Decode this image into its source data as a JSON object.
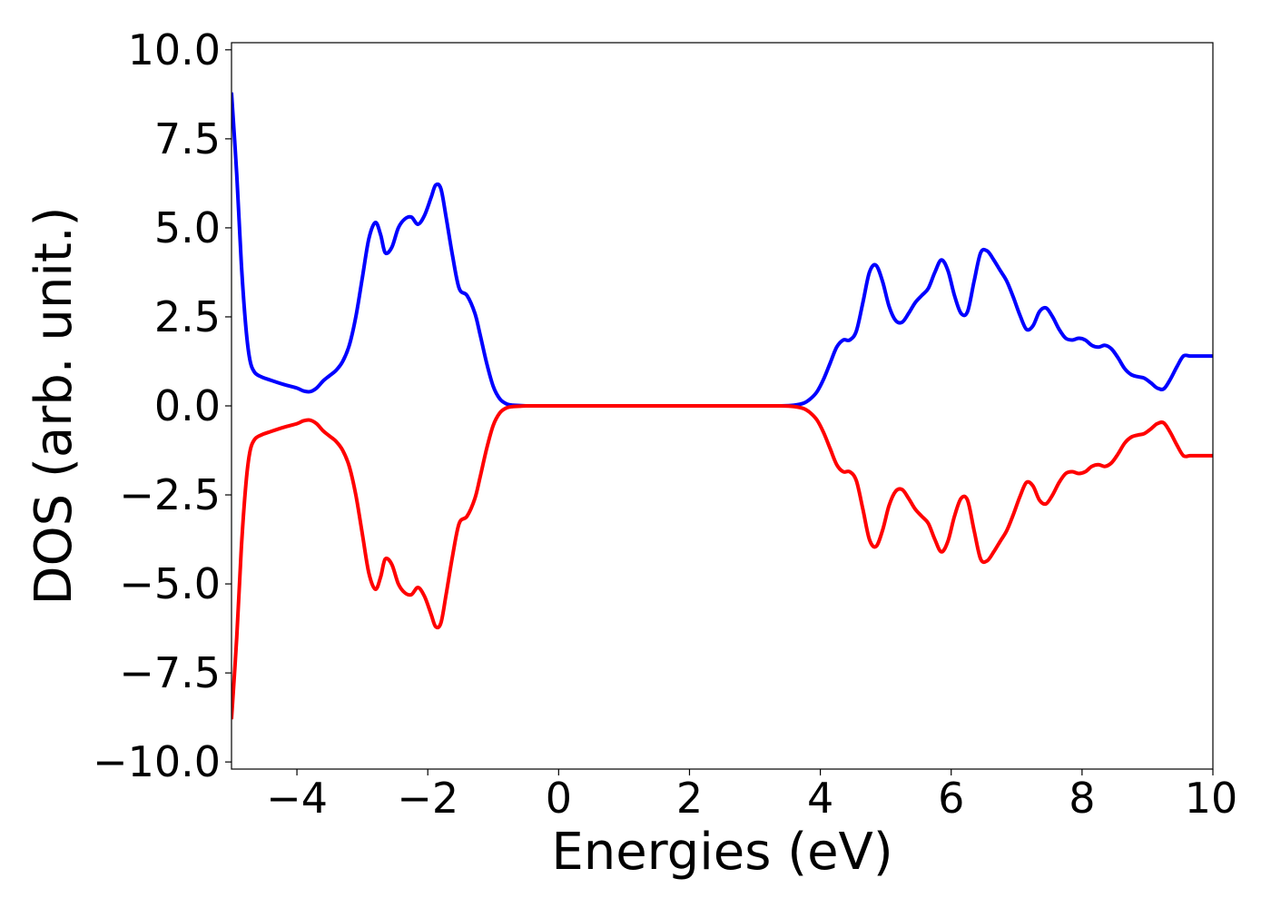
{
  "chart_data": {
    "type": "line",
    "title": "",
    "xlabel": "Energies (eV)",
    "ylabel": "DOS (arb. unit.)",
    "xlim": [
      -5,
      10
    ],
    "ylim": [
      -10.2,
      10.2
    ],
    "xticks": [
      -4,
      -2,
      0,
      2,
      4,
      6,
      8,
      10
    ],
    "xtick_labels": [
      "−4",
      "−2",
      "0",
      "2",
      "4",
      "6",
      "8",
      "10"
    ],
    "yticks": [
      10,
      7.5,
      5,
      2.5,
      0,
      -2.5,
      -5,
      -7.5,
      -10
    ],
    "ytick_labels": [
      "10.0",
      "7.5",
      "5.0",
      "2.5",
      "0.0",
      "−2.5",
      "−5.0",
      "−7.5",
      "−10.0"
    ],
    "grid": false,
    "legend": "none",
    "series": [
      {
        "color": "#0000ff",
        "x": [
          -5.0,
          -4.92,
          -4.85,
          -4.78,
          -4.72,
          -4.65,
          -4.55,
          -4.4,
          -4.2,
          -4.0,
          -3.9,
          -3.8,
          -3.7,
          -3.6,
          -3.5,
          -3.4,
          -3.3,
          -3.2,
          -3.1,
          -3.0,
          -2.9,
          -2.8,
          -2.72,
          -2.65,
          -2.55,
          -2.45,
          -2.35,
          -2.25,
          -2.15,
          -2.05,
          -1.95,
          -1.88,
          -1.8,
          -1.72,
          -1.62,
          -1.52,
          -1.4,
          -1.28,
          -1.2,
          -1.1,
          -1.0,
          -0.9,
          -0.8,
          -0.7,
          -0.6,
          -0.5,
          -0.3,
          0.0,
          0.5,
          1.0,
          1.5,
          2.0,
          2.5,
          3.0,
          3.4,
          3.6,
          3.75,
          3.85,
          3.95,
          4.05,
          4.15,
          4.25,
          4.35,
          4.45,
          4.55,
          4.65,
          4.75,
          4.85,
          4.95,
          5.05,
          5.15,
          5.25,
          5.35,
          5.45,
          5.55,
          5.65,
          5.75,
          5.85,
          5.95,
          6.05,
          6.15,
          6.25,
          6.35,
          6.45,
          6.55,
          6.65,
          6.75,
          6.85,
          6.95,
          7.05,
          7.15,
          7.25,
          7.35,
          7.45,
          7.55,
          7.65,
          7.75,
          7.85,
          7.95,
          8.05,
          8.15,
          8.25,
          8.35,
          8.45,
          8.55,
          8.65,
          8.75,
          8.85,
          8.95,
          9.05,
          9.15,
          9.25,
          9.35,
          9.45,
          9.55,
          9.65,
          9.75,
          9.85,
          9.95,
          10.0
        ],
        "y": [
          8.8,
          6.5,
          4.0,
          2.2,
          1.3,
          0.95,
          0.82,
          0.72,
          0.6,
          0.5,
          0.42,
          0.4,
          0.5,
          0.7,
          0.85,
          1.0,
          1.25,
          1.7,
          2.5,
          3.6,
          4.7,
          5.15,
          4.8,
          4.3,
          4.45,
          5.0,
          5.25,
          5.3,
          5.1,
          5.35,
          5.85,
          6.2,
          6.1,
          5.3,
          4.2,
          3.3,
          3.1,
          2.6,
          2.0,
          1.2,
          0.55,
          0.2,
          0.06,
          0.02,
          0.01,
          0.0,
          0.0,
          0.0,
          0.0,
          0.0,
          0.0,
          0.0,
          0.0,
          0.0,
          0.0,
          0.02,
          0.08,
          0.2,
          0.4,
          0.75,
          1.2,
          1.65,
          1.85,
          1.85,
          2.1,
          2.9,
          3.75,
          3.95,
          3.5,
          2.8,
          2.4,
          2.35,
          2.6,
          2.9,
          3.1,
          3.3,
          3.75,
          4.1,
          3.8,
          3.1,
          2.6,
          2.65,
          3.5,
          4.3,
          4.35,
          4.1,
          3.8,
          3.5,
          3.05,
          2.55,
          2.15,
          2.25,
          2.65,
          2.75,
          2.5,
          2.15,
          1.9,
          1.85,
          1.9,
          1.85,
          1.7,
          1.65,
          1.7,
          1.6,
          1.35,
          1.05,
          0.88,
          0.82,
          0.78,
          0.65,
          0.5,
          0.48,
          0.75,
          1.1,
          1.4,
          1.4,
          1.4,
          1.4,
          1.4,
          1.4
        ]
      },
      {
        "color": "#ff0000",
        "x": [
          -5.0,
          -4.92,
          -4.85,
          -4.78,
          -4.72,
          -4.65,
          -4.55,
          -4.4,
          -4.2,
          -4.0,
          -3.9,
          -3.8,
          -3.7,
          -3.6,
          -3.5,
          -3.4,
          -3.3,
          -3.2,
          -3.1,
          -3.0,
          -2.9,
          -2.8,
          -2.72,
          -2.65,
          -2.55,
          -2.45,
          -2.35,
          -2.25,
          -2.15,
          -2.05,
          -1.95,
          -1.88,
          -1.8,
          -1.72,
          -1.62,
          -1.52,
          -1.4,
          -1.28,
          -1.2,
          -1.1,
          -1.0,
          -0.9,
          -0.8,
          -0.7,
          -0.6,
          -0.5,
          -0.3,
          0.0,
          0.5,
          1.0,
          1.5,
          2.0,
          2.5,
          3.0,
          3.4,
          3.6,
          3.75,
          3.85,
          3.95,
          4.05,
          4.15,
          4.25,
          4.35,
          4.45,
          4.55,
          4.65,
          4.75,
          4.85,
          4.95,
          5.05,
          5.15,
          5.25,
          5.35,
          5.45,
          5.55,
          5.65,
          5.75,
          5.85,
          5.95,
          6.05,
          6.15,
          6.25,
          6.35,
          6.45,
          6.55,
          6.65,
          6.75,
          6.85,
          6.95,
          7.05,
          7.15,
          7.25,
          7.35,
          7.45,
          7.55,
          7.65,
          7.75,
          7.85,
          7.95,
          8.05,
          8.15,
          8.25,
          8.35,
          8.45,
          8.55,
          8.65,
          8.75,
          8.85,
          8.95,
          9.05,
          9.15,
          9.25,
          9.35,
          9.45,
          9.55,
          9.65,
          9.75,
          9.85,
          9.95,
          10.0
        ],
        "y": [
          -8.8,
          -6.5,
          -4.0,
          -2.2,
          -1.3,
          -0.95,
          -0.82,
          -0.72,
          -0.6,
          -0.5,
          -0.42,
          -0.4,
          -0.5,
          -0.7,
          -0.85,
          -1.0,
          -1.25,
          -1.7,
          -2.5,
          -3.6,
          -4.7,
          -5.15,
          -4.8,
          -4.3,
          -4.45,
          -5.0,
          -5.25,
          -5.3,
          -5.1,
          -5.35,
          -5.85,
          -6.2,
          -6.1,
          -5.3,
          -4.2,
          -3.3,
          -3.1,
          -2.6,
          -2.0,
          -1.2,
          -0.55,
          -0.2,
          -0.06,
          -0.02,
          -0.01,
          0.0,
          0.0,
          0.0,
          0.0,
          0.0,
          0.0,
          0.0,
          0.0,
          0.0,
          0.0,
          -0.02,
          -0.08,
          -0.2,
          -0.4,
          -0.75,
          -1.2,
          -1.65,
          -1.85,
          -1.85,
          -2.1,
          -2.9,
          -3.75,
          -3.95,
          -3.5,
          -2.8,
          -2.4,
          -2.35,
          -2.6,
          -2.9,
          -3.1,
          -3.3,
          -3.75,
          -4.1,
          -3.8,
          -3.1,
          -2.6,
          -2.65,
          -3.5,
          -4.3,
          -4.35,
          -4.1,
          -3.8,
          -3.5,
          -3.05,
          -2.55,
          -2.15,
          -2.25,
          -2.65,
          -2.75,
          -2.5,
          -2.15,
          -1.9,
          -1.85,
          -1.9,
          -1.85,
          -1.7,
          -1.65,
          -1.7,
          -1.6,
          -1.35,
          -1.05,
          -0.88,
          -0.82,
          -0.78,
          -0.65,
          -0.5,
          -0.48,
          -0.75,
          -1.1,
          -1.4,
          -1.4,
          -1.4,
          -1.4,
          -1.4,
          -1.4
        ]
      }
    ]
  }
}
